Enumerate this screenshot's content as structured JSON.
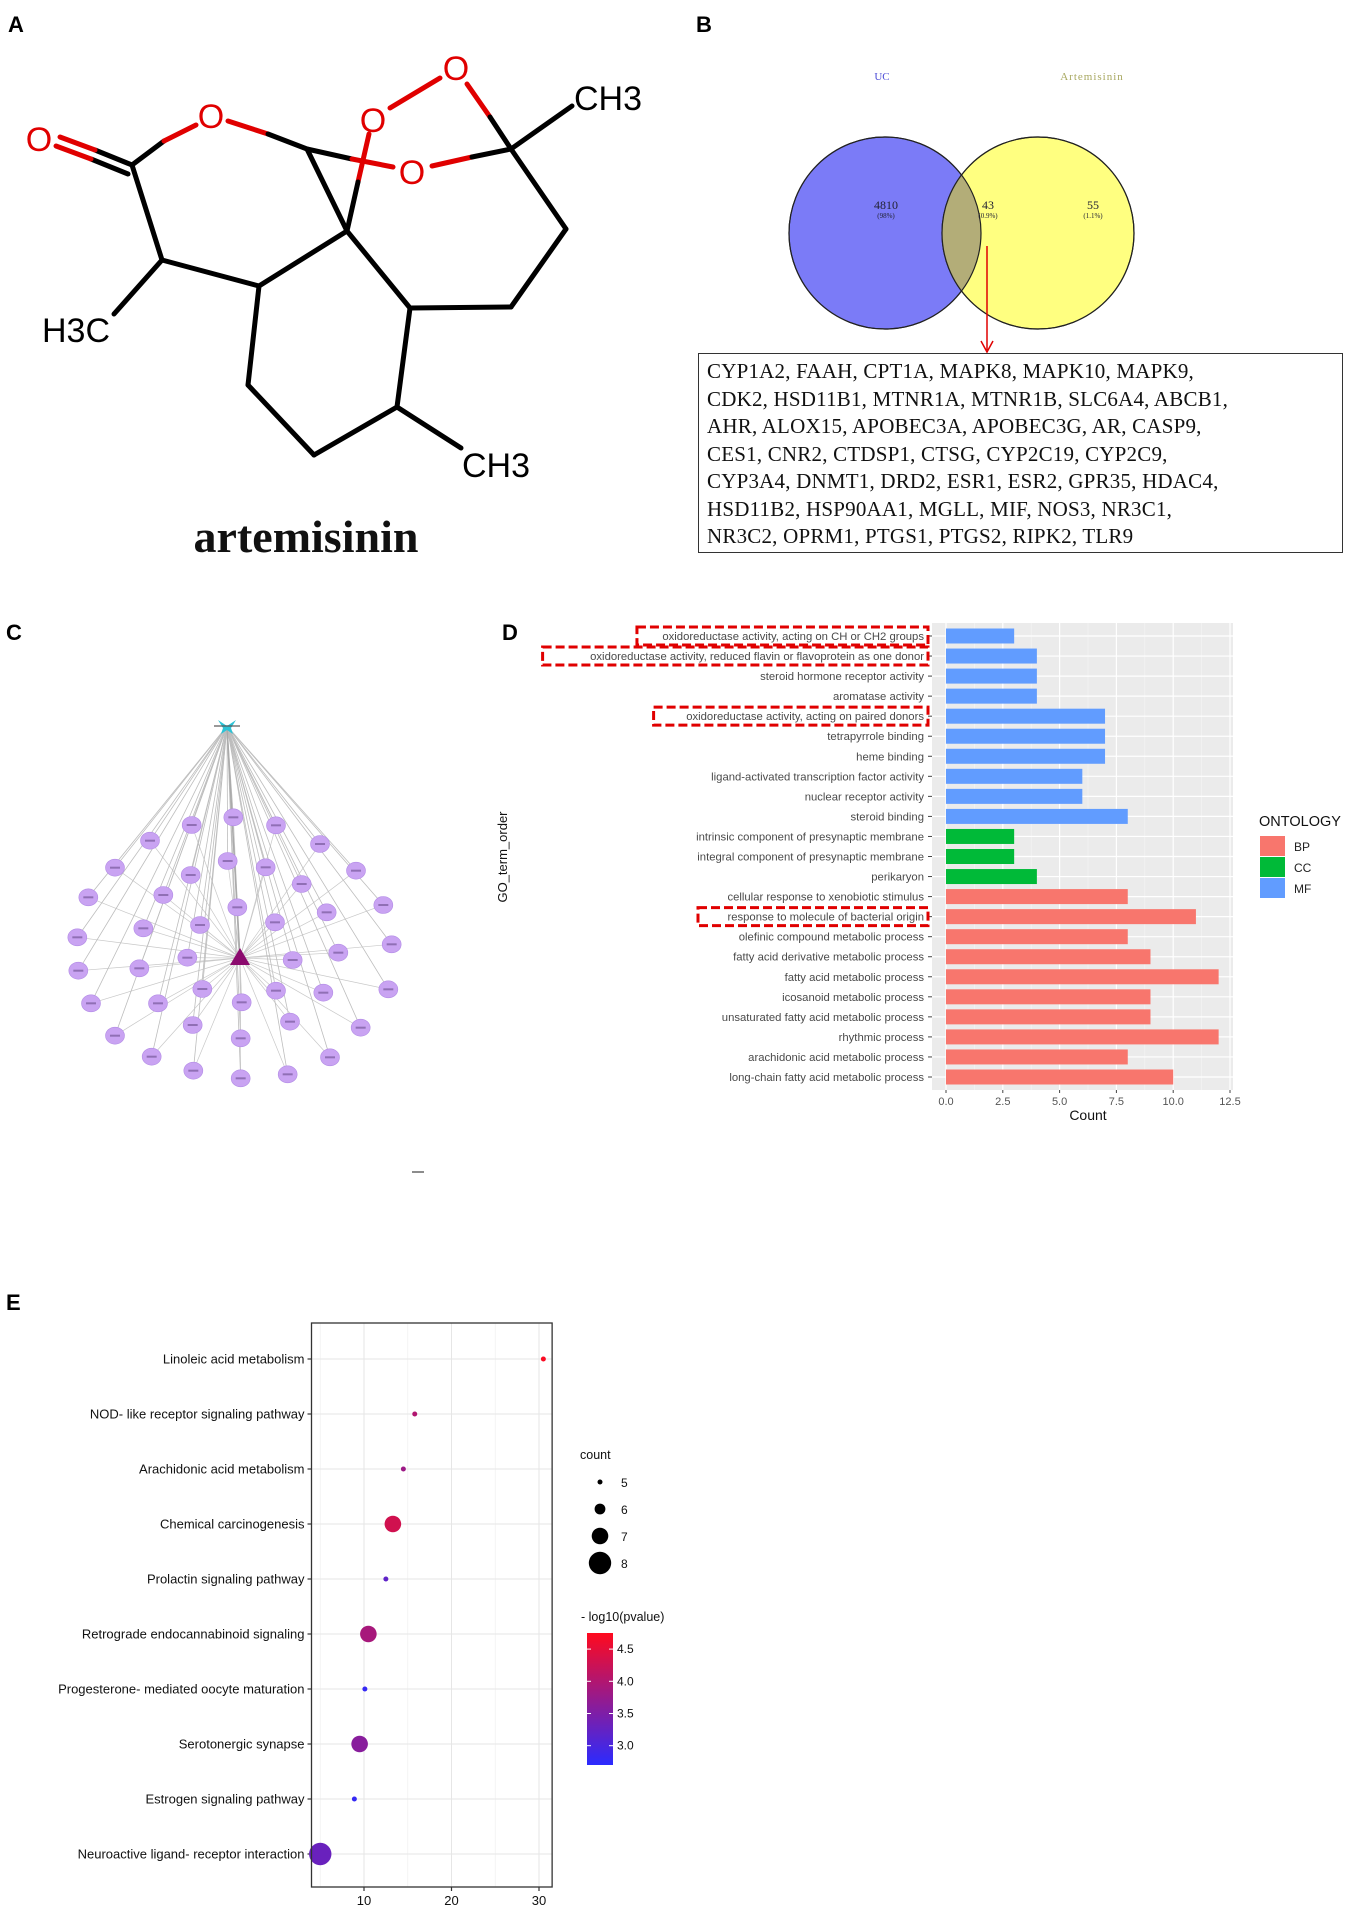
{
  "panels": {
    "a": "A",
    "b": "B",
    "c": "C",
    "d": "D",
    "e": "E"
  },
  "structure": {
    "name": "artemisinin",
    "atoms": {
      "o": "O",
      "ch3": "CH3",
      "h3c": "H3C"
    }
  },
  "venn": {
    "sets": [
      {
        "label": "UC",
        "count": "4810",
        "percent": "(98%)",
        "color": "#7b7bf7"
      },
      {
        "label": "Artemisinin",
        "count": "55",
        "percent": "(1.1%)",
        "color": "#ffff80"
      }
    ],
    "overlap": {
      "count": "43",
      "percent": "(0.9%)",
      "color": "#b3ad78"
    },
    "gene_lines": [
      "CYP1A2, FAAH, CPT1A, MAPK8, MAPK10, MAPK9,",
      "CDK2, HSD11B1, MTNR1A, MTNR1B, SLC6A4, ABCB1,",
      "AHR, ALOX15, APOBEC3A, APOBEC3G, AR, CASP9,",
      "CES1, CNR2, CTDSP1, CTSG, CYP2C19, CYP2C9,",
      "CYP3A4, DNMT1, DRD2, ESR1, ESR2, GPR35, HDAC4,",
      "HSD11B2, HSP90AA1, MGLL, MIF, NOS3, NR3C1,",
      "NR3C2, OPRM1, PTGS1, PTGS2, RIPK2, TLR9"
    ]
  },
  "network": {
    "drug_node_color": "#2cc3d6",
    "disease_node_color": "#8b0a6e",
    "target_node_color": "#c9a3f2",
    "target_count": 43
  },
  "chart_data": [
    {
      "type": "bar",
      "orientation": "horizontal",
      "xlabel": "Count",
      "ylabel": "GO_term_order",
      "xlim": [
        0,
        12.5
      ],
      "xticks": [
        "0.0",
        "2.5",
        "5.0",
        "7.5",
        "10.0",
        "12.5"
      ],
      "grid": true,
      "legend": {
        "title": "ONTOLOGY",
        "placement": "right",
        "entries": [
          {
            "name": "BP",
            "color": "#f8766d"
          },
          {
            "name": "CC",
            "color": "#00ba38"
          },
          {
            "name": "MF",
            "color": "#619cff"
          }
        ]
      },
      "categories": [
        "oxidoreductase activity, acting on CH or CH2 groups",
        "oxidoreductase activity, reduced flavin or flavoprotein as one donor",
        "steroid hormone receptor activity",
        "aromatase activity",
        "oxidoreductase activity, acting on paired donors",
        "tetrapyrrole binding",
        "heme binding",
        "ligand-activated transcription factor activity",
        "nuclear receptor activity",
        "steroid binding",
        "intrinsic component of presynaptic membrane",
        "integral component of presynaptic membrane",
        "perikaryon",
        "cellular response to xenobiotic stimulus",
        "response to molecule of bacterial origin",
        "olefinic compound metabolic process",
        "fatty acid derivative metabolic process",
        "fatty acid metabolic process",
        "icosanoid metabolic process",
        "unsaturated fatty acid metabolic process",
        "rhythmic process",
        "arachidonic acid metabolic process",
        "long-chain fatty acid metabolic process"
      ],
      "values": [
        3,
        4,
        4,
        4,
        7,
        7,
        7,
        6,
        6,
        8,
        3,
        3,
        4,
        8,
        11,
        8,
        9,
        12,
        9,
        9,
        12,
        8,
        10
      ],
      "ontology": [
        "MF",
        "MF",
        "MF",
        "MF",
        "MF",
        "MF",
        "MF",
        "MF",
        "MF",
        "MF",
        "CC",
        "CC",
        "CC",
        "BP",
        "BP",
        "BP",
        "BP",
        "BP",
        "BP",
        "BP",
        "BP",
        "BP",
        "BP"
      ],
      "highlighted": [
        "oxidoreductase activity, acting on CH or CH2 groups",
        "oxidoreductase activity, reduced flavin or flavoprotein as one donor",
        "oxidoreductase activity, acting on paired donors",
        "response to molecule of bacterial origin"
      ],
      "highlight_color": "#e00000"
    },
    {
      "type": "scatter",
      "subtype": "dot-plot",
      "xlim": [
        4,
        31.5
      ],
      "xticks": [
        "10",
        "20",
        "30"
      ],
      "grid": true,
      "categories": [
        "Linoleic acid metabolism",
        "NOD- like receptor signaling pathway",
        "Arachidonic acid metabolism",
        "Chemical carcinogenesis",
        "Prolactin signaling pathway",
        "Retrograde endocannabinoid signaling",
        "Progesterone- mediated oocyte maturation",
        "Serotonergic synapse",
        "Estrogen signaling pathway",
        "Neuroactive ligand- receptor interaction"
      ],
      "x": [
        30.5,
        15.8,
        14.5,
        13.3,
        12.5,
        10.5,
        10.1,
        9.5,
        8.9,
        5.0
      ],
      "count": [
        5,
        5,
        5,
        7,
        5,
        7,
        5,
        7,
        5,
        8
      ],
      "neg_log10_pvalue": [
        4.7,
        4.0,
        3.8,
        4.3,
        3.2,
        3.9,
        2.8,
        3.6,
        2.8,
        3.3
      ],
      "size_legend": {
        "title": "count",
        "values": [
          "5",
          "6",
          "7",
          "8"
        ]
      },
      "color_legend": {
        "title": "- log10(pvalue)",
        "ticks": [
          "4.5",
          "4.0",
          "3.5",
          "3.0"
        ],
        "range": [
          2.7,
          4.75
        ],
        "low_color": "#2b2bff",
        "high_color": "#ff0a1e"
      },
      "legend_placement": "right"
    }
  ]
}
